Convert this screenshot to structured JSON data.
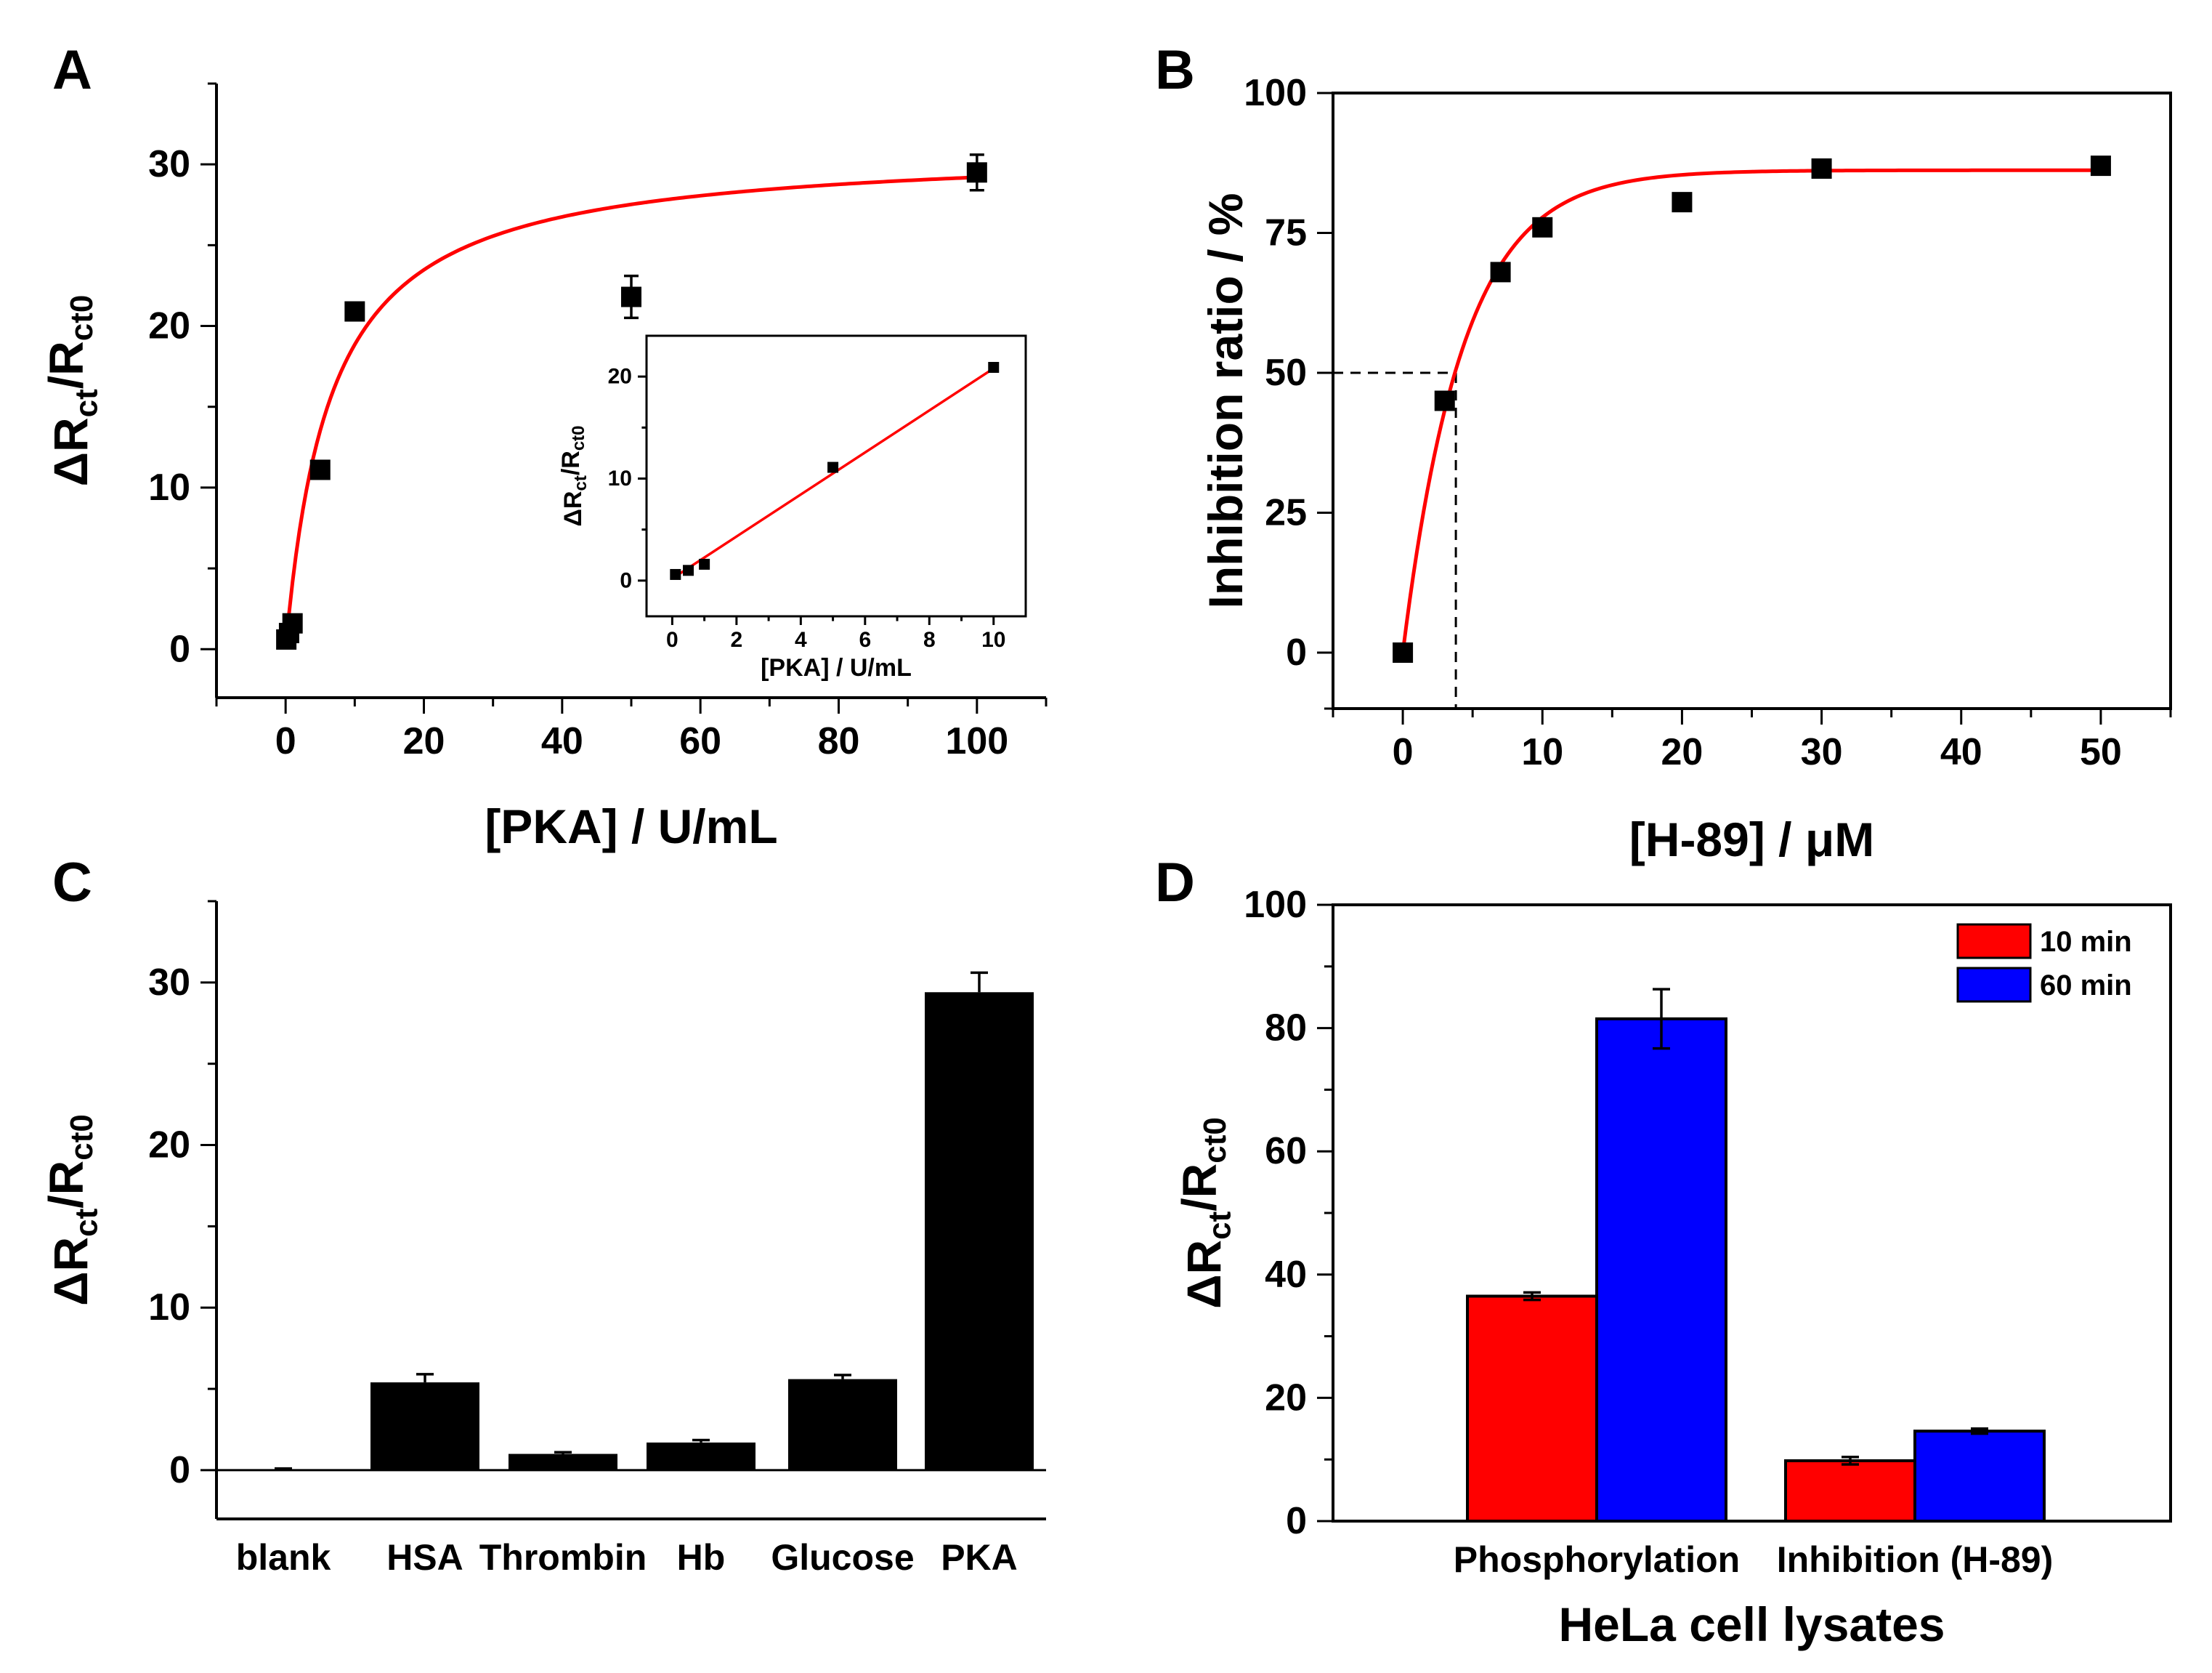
{
  "panels": {
    "A": "A",
    "B": "B",
    "C": "C",
    "D": "D"
  },
  "chart_data": [
    {
      "panel": "A",
      "type": "scatter",
      "xlabel": "[PKA] / U/mL",
      "ylabel": "ΔRct/Rct0",
      "xlim": [
        -10,
        110
      ],
      "ylim": [
        -3,
        35
      ],
      "xticks": [
        0,
        20,
        40,
        60,
        80,
        100
      ],
      "yticks": [
        0,
        10,
        20,
        30
      ],
      "points": [
        {
          "x": 0.1,
          "y": 0.6,
          "err": 0.3
        },
        {
          "x": 0.5,
          "y": 1.0,
          "err": 0.3
        },
        {
          "x": 1,
          "y": 1.6,
          "err": 0.4
        },
        {
          "x": 5,
          "y": 11.1,
          "err": 0.4
        },
        {
          "x": 10,
          "y": 20.9,
          "err": 0.4
        },
        {
          "x": 50,
          "y": 21.8,
          "err": 1.3
        },
        {
          "x": 100,
          "y": 29.5,
          "err": 1.1
        }
      ],
      "fit": {
        "type": "saturation",
        "ymax": 31.1,
        "k": 6.5,
        "color": "#ff0000"
      },
      "inset": {
        "xlabel": "[PKA] / U/mL",
        "ylabel": "ΔRct/Rct0",
        "xlim": [
          -0.8,
          11
        ],
        "ylim": [
          -3.5,
          24
        ],
        "xticks": [
          0,
          2,
          4,
          6,
          8,
          10
        ],
        "yticks": [
          0,
          10,
          20
        ],
        "points": [
          {
            "x": 0.1,
            "y": 0.6
          },
          {
            "x": 0.5,
            "y": 1.0
          },
          {
            "x": 1,
            "y": 1.6
          },
          {
            "x": 5,
            "y": 11.1
          },
          {
            "x": 10,
            "y": 20.9
          }
        ],
        "fit": {
          "type": "linear",
          "x": [
            0,
            10
          ],
          "y": [
            0.2,
            20.8
          ],
          "color": "#ff0000"
        }
      }
    },
    {
      "panel": "B",
      "type": "scatter",
      "xlabel": "[H-89] / μM",
      "ylabel": "Inhibition ratio / %",
      "xlim": [
        -5,
        55
      ],
      "ylim": [
        -10,
        100
      ],
      "xticks": [
        0,
        10,
        20,
        30,
        40,
        50
      ],
      "yticks": [
        0,
        25,
        50,
        75,
        100
      ],
      "points": [
        {
          "x": 0,
          "y": 0
        },
        {
          "x": 3,
          "y": 45
        },
        {
          "x": 7,
          "y": 68
        },
        {
          "x": 10,
          "y": 76
        },
        {
          "x": 20,
          "y": 80.5
        },
        {
          "x": 30,
          "y": 86.5
        },
        {
          "x": 50,
          "y": 87
        }
      ],
      "fit": {
        "type": "exponential",
        "ymax": 86.2,
        "t": 4.3,
        "color": "#ff0000"
      },
      "ic50_guide": {
        "x": 3.8,
        "y": 50
      }
    },
    {
      "panel": "C",
      "type": "bar",
      "ylabel": "ΔRct/Rct0",
      "ylim": [
        -3,
        35
      ],
      "yticks": [
        0,
        10,
        20,
        30
      ],
      "categories": [
        "blank",
        "HSA",
        "Thrombin",
        "Hb",
        "Glucose",
        "PKA"
      ],
      "values": [
        0.05,
        5.4,
        1.0,
        1.7,
        5.6,
        29.4
      ],
      "errors": [
        0.05,
        0.5,
        0.1,
        0.15,
        0.25,
        1.2
      ],
      "color": "#000000"
    },
    {
      "panel": "D",
      "type": "bar",
      "xlabel": "HeLa cell lysates",
      "ylabel": "ΔRct/Rct0",
      "ylim": [
        0,
        100
      ],
      "yticks": [
        0,
        20,
        40,
        60,
        80,
        100
      ],
      "categories": [
        "Phosphorylation",
        "Inhibition (H-89)"
      ],
      "series": [
        {
          "name": "10 min",
          "values": [
            36.5,
            9.8
          ],
          "errors": [
            0.6,
            0.6
          ],
          "color": "#ff0000"
        },
        {
          "name": "60 min",
          "values": [
            81.5,
            14.6
          ],
          "errors": [
            4.8,
            0.4
          ],
          "color": "#0000ff"
        }
      ],
      "legend": "top-right"
    }
  ]
}
